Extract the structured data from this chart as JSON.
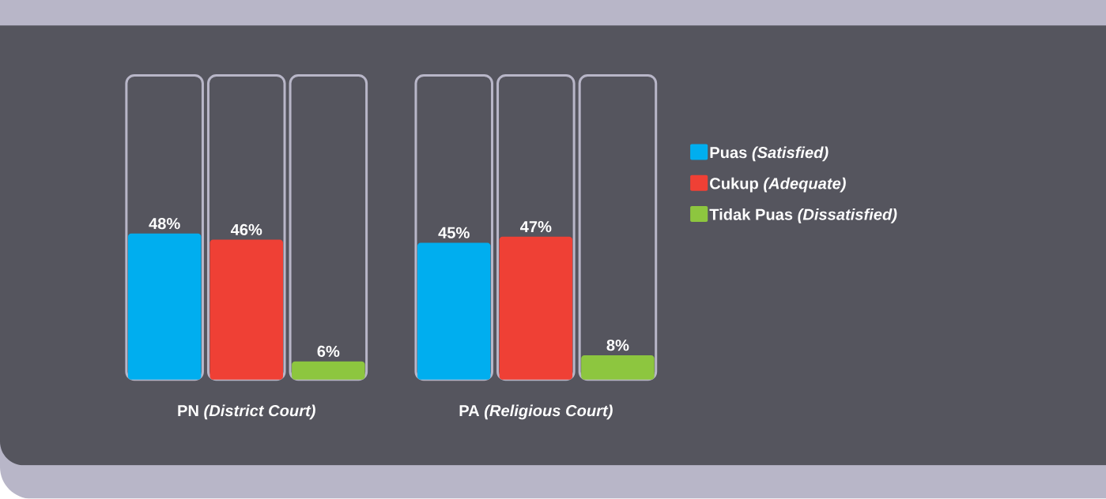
{
  "chart_data": {
    "type": "bar",
    "categories": [
      "PN *(District Court)*",
      "PA *(Religious Court)*"
    ],
    "series": [
      {
        "name": "Puas *(Satisfied)*",
        "color": "#00aeef",
        "values": [
          48,
          45
        ],
        "value_labels": [
          "48%",
          "45%"
        ]
      },
      {
        "name": "Cukup *(Adequate)*",
        "color": "#ef4035",
        "values": [
          46,
          47
        ],
        "value_labels": [
          "46%",
          "47%"
        ]
      },
      {
        "name": "Tidak Puas *(Dissatisfied)*",
        "color": "#8dc63f",
        "values": [
          6,
          8
        ],
        "value_labels": [
          "6%",
          "8%"
        ]
      }
    ],
    "ylim": [
      0,
      100
    ],
    "legend": "right"
  }
}
